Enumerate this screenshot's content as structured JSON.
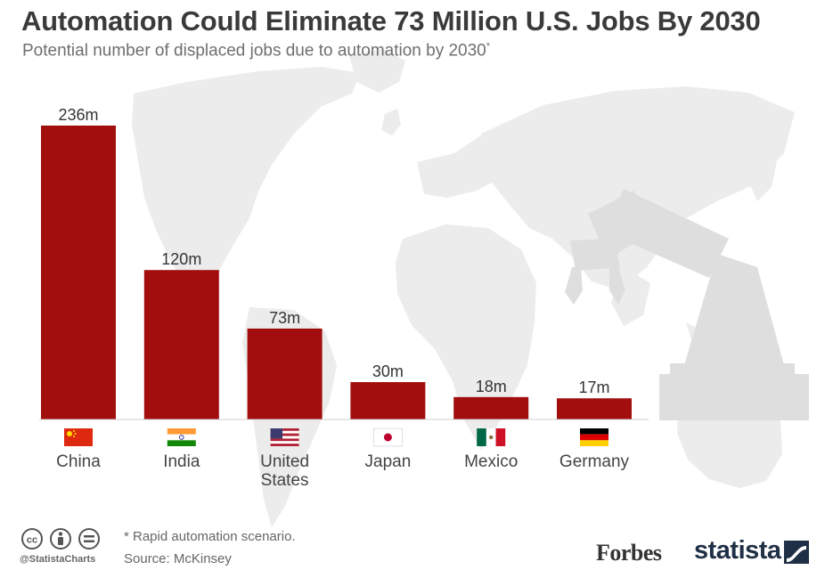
{
  "title": "Automation Could Eliminate 73 Million U.S. Jobs By 2030",
  "subtitle": "Potential number of displaced jobs due to automation by 2030",
  "subtitle_marker": "*",
  "footnote": "* Rapid automation scenario.",
  "source": "Source: McKinsey",
  "handle": "@StatistaCharts",
  "brand_forbes": "Forbes",
  "brand_statista": "statista",
  "colors": {
    "bar": "#a20e0e",
    "background_art": "#ececec",
    "robot_arm": "#dedede",
    "text": "#3a3a3a"
  },
  "icons": [
    "cc-icon",
    "by-icon",
    "nd-icon",
    "statista-logo-icon",
    "flag-icons"
  ],
  "chart_data": {
    "type": "bar",
    "title": "Automation Could Eliminate 73 Million U.S. Jobs By 2030",
    "subtitle": "Potential number of displaced jobs due to automation by 2030*",
    "categories": [
      "China",
      "India",
      "United States",
      "Japan",
      "Mexico",
      "Germany"
    ],
    "category_lines": [
      [
        "China"
      ],
      [
        "India"
      ],
      [
        "United",
        "States"
      ],
      [
        "Japan"
      ],
      [
        "Mexico"
      ],
      [
        "Germany"
      ]
    ],
    "flags": [
      "china",
      "india",
      "usa",
      "japan",
      "mexico",
      "germany"
    ],
    "values": [
      236,
      120,
      73,
      30,
      18,
      17
    ],
    "value_labels": [
      "236m",
      "120m",
      "73m",
      "30m",
      "18m",
      "17m"
    ],
    "unit": "million jobs",
    "ylim": [
      0,
      236
    ],
    "grid": false,
    "legend": "none"
  }
}
